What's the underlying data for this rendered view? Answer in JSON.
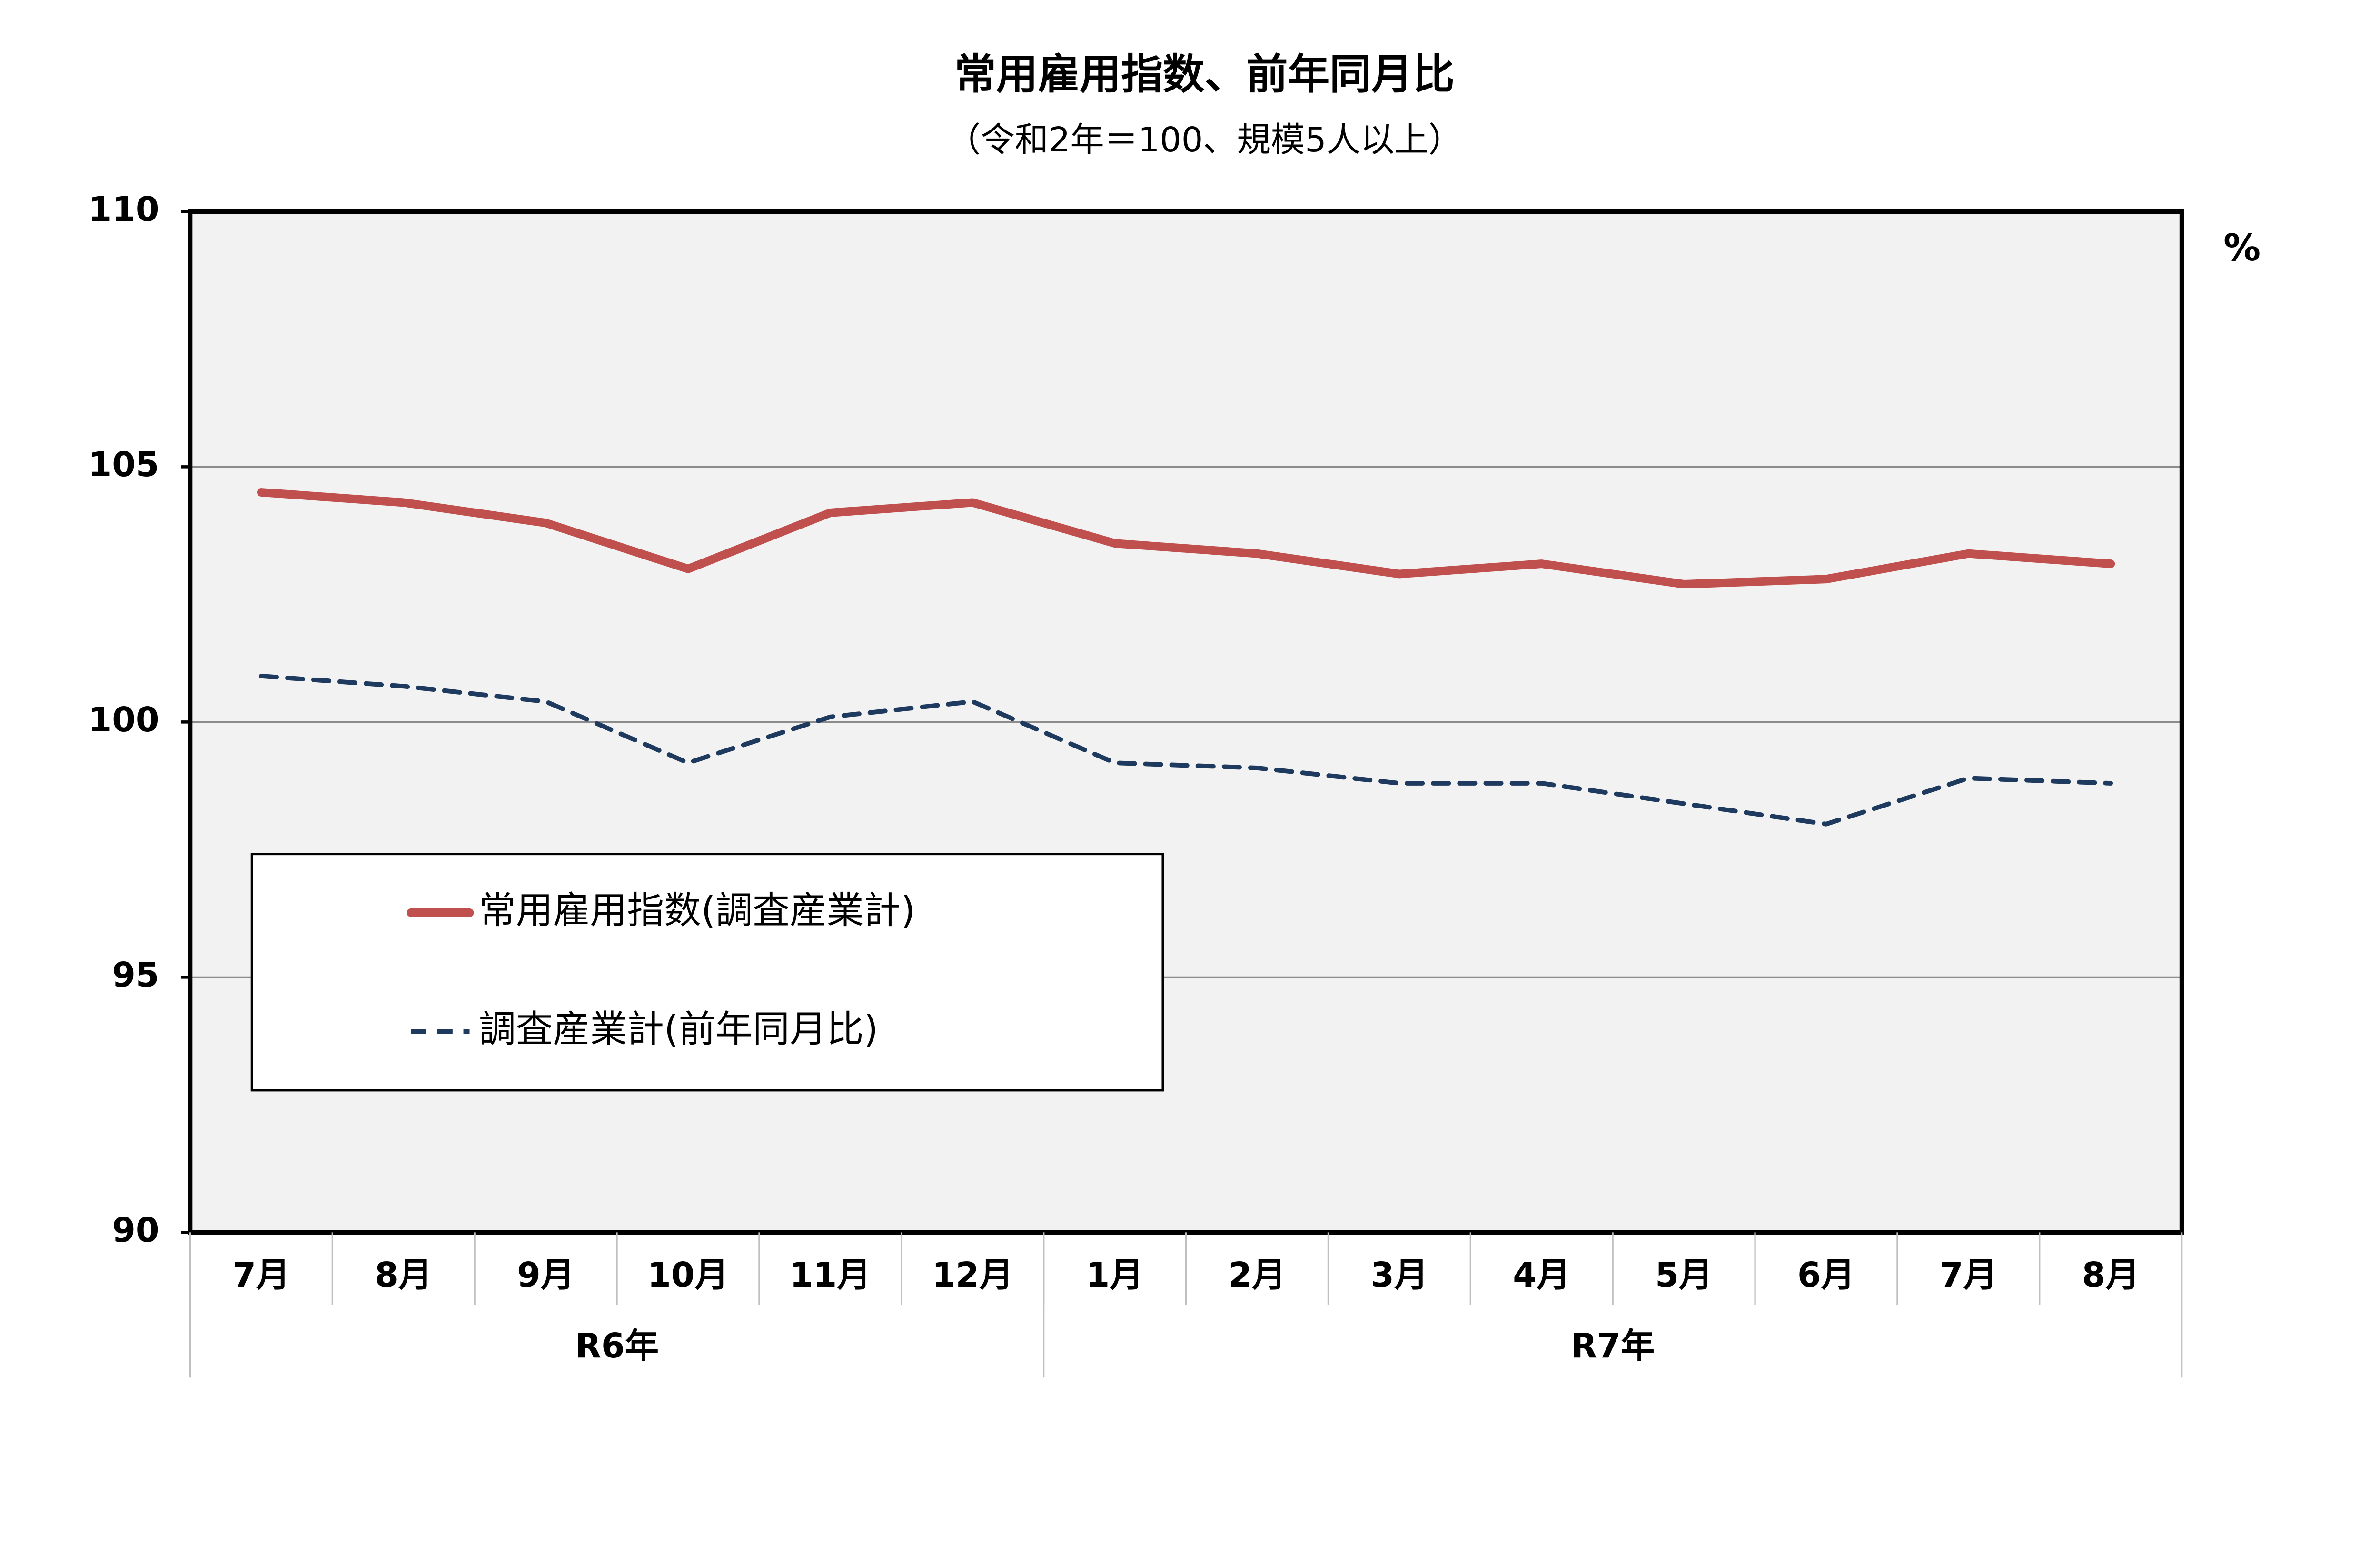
{
  "chart_data": {
    "type": "line",
    "title": "常用雇用指数、前年同月比",
    "subtitle": "（令和2年＝100、規模5人以上）",
    "unit": "%",
    "categories": [
      "7月",
      "8月",
      "9月",
      "10月",
      "11月",
      "12月",
      "1月",
      "2月",
      "3月",
      "4月",
      "5月",
      "6月",
      "7月",
      "8月"
    ],
    "category_groups": [
      {
        "label": "R6年",
        "size": 6
      },
      {
        "label": "R7年",
        "size": 8
      }
    ],
    "series": [
      {
        "name": "常用雇用指数(調査産業計)",
        "color": "#c0504d",
        "dash": false,
        "values": [
          104.5,
          104.3,
          103.9,
          103.0,
          104.1,
          104.3,
          103.5,
          103.3,
          102.9,
          103.1,
          102.7,
          102.8,
          103.3,
          103.1
        ]
      },
      {
        "name": "調査産業計(前年同月比)",
        "color": "#1f3a5f",
        "dash": true,
        "values": [
          100.9,
          100.7,
          100.4,
          99.2,
          100.1,
          100.4,
          99.2,
          99.1,
          98.8,
          98.8,
          98.4,
          98.0,
          98.9,
          98.8
        ]
      }
    ],
    "ylim": [
      90,
      110
    ],
    "yticks": [
      90,
      95,
      100,
      105,
      110
    ],
    "grid": true,
    "legend": "lower-left"
  }
}
